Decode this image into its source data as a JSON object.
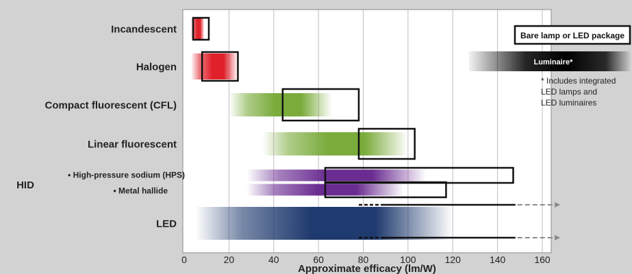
{
  "chart_data": {
    "type": "bar",
    "title": "",
    "xlabel": "Approximate efficacy (lm/W)",
    "ylabel": "",
    "xlim": [
      0,
      160
    ],
    "x_ticks": [
      0,
      20,
      40,
      60,
      80,
      100,
      120,
      140,
      160
    ],
    "grid": "vertical",
    "legend_position": "top-right",
    "group_label": "HID",
    "categories": [
      "Incandescent",
      "Halogen",
      "Compact fluorescent (CFL)",
      "Linear fluorescent",
      "• High-pressure sodium (HPS)",
      "• Metal hallide",
      "LED"
    ],
    "series": [
      {
        "name": "Bare lamp or LED package",
        "ranges": [
          [
            4,
            11
          ],
          [
            8,
            24
          ],
          [
            44,
            78
          ],
          [
            78,
            103
          ],
          [
            63,
            147
          ],
          [
            63,
            117
          ],
          [
            78,
            148
          ]
        ]
      },
      {
        "name": "Luminaire*",
        "ranges": [
          [
            3,
            9
          ],
          [
            3,
            24
          ],
          [
            20,
            66
          ],
          [
            35,
            100
          ],
          [
            28,
            108
          ],
          [
            28,
            98
          ],
          [
            5,
            120
          ]
        ]
      }
    ],
    "led_arrow_extension": {
      "dashed_from": 78,
      "dashed_to": 88,
      "solid_to": 148,
      "arrow_to": 168
    },
    "colors": {
      "Incandescent": "#e0212b",
      "Halogen": "#e0212b",
      "Compact fluorescent (CFL)": "#7aab3b",
      "Linear fluorescent": "#7aab3b",
      "• High-pressure sodium (HPS)": "#6a2c91",
      "• Metal hallide": "#6a2c91",
      "LED": "#1f3a6e"
    },
    "footnote": "* Includes integrated LED lamps and LED luminaires"
  }
}
